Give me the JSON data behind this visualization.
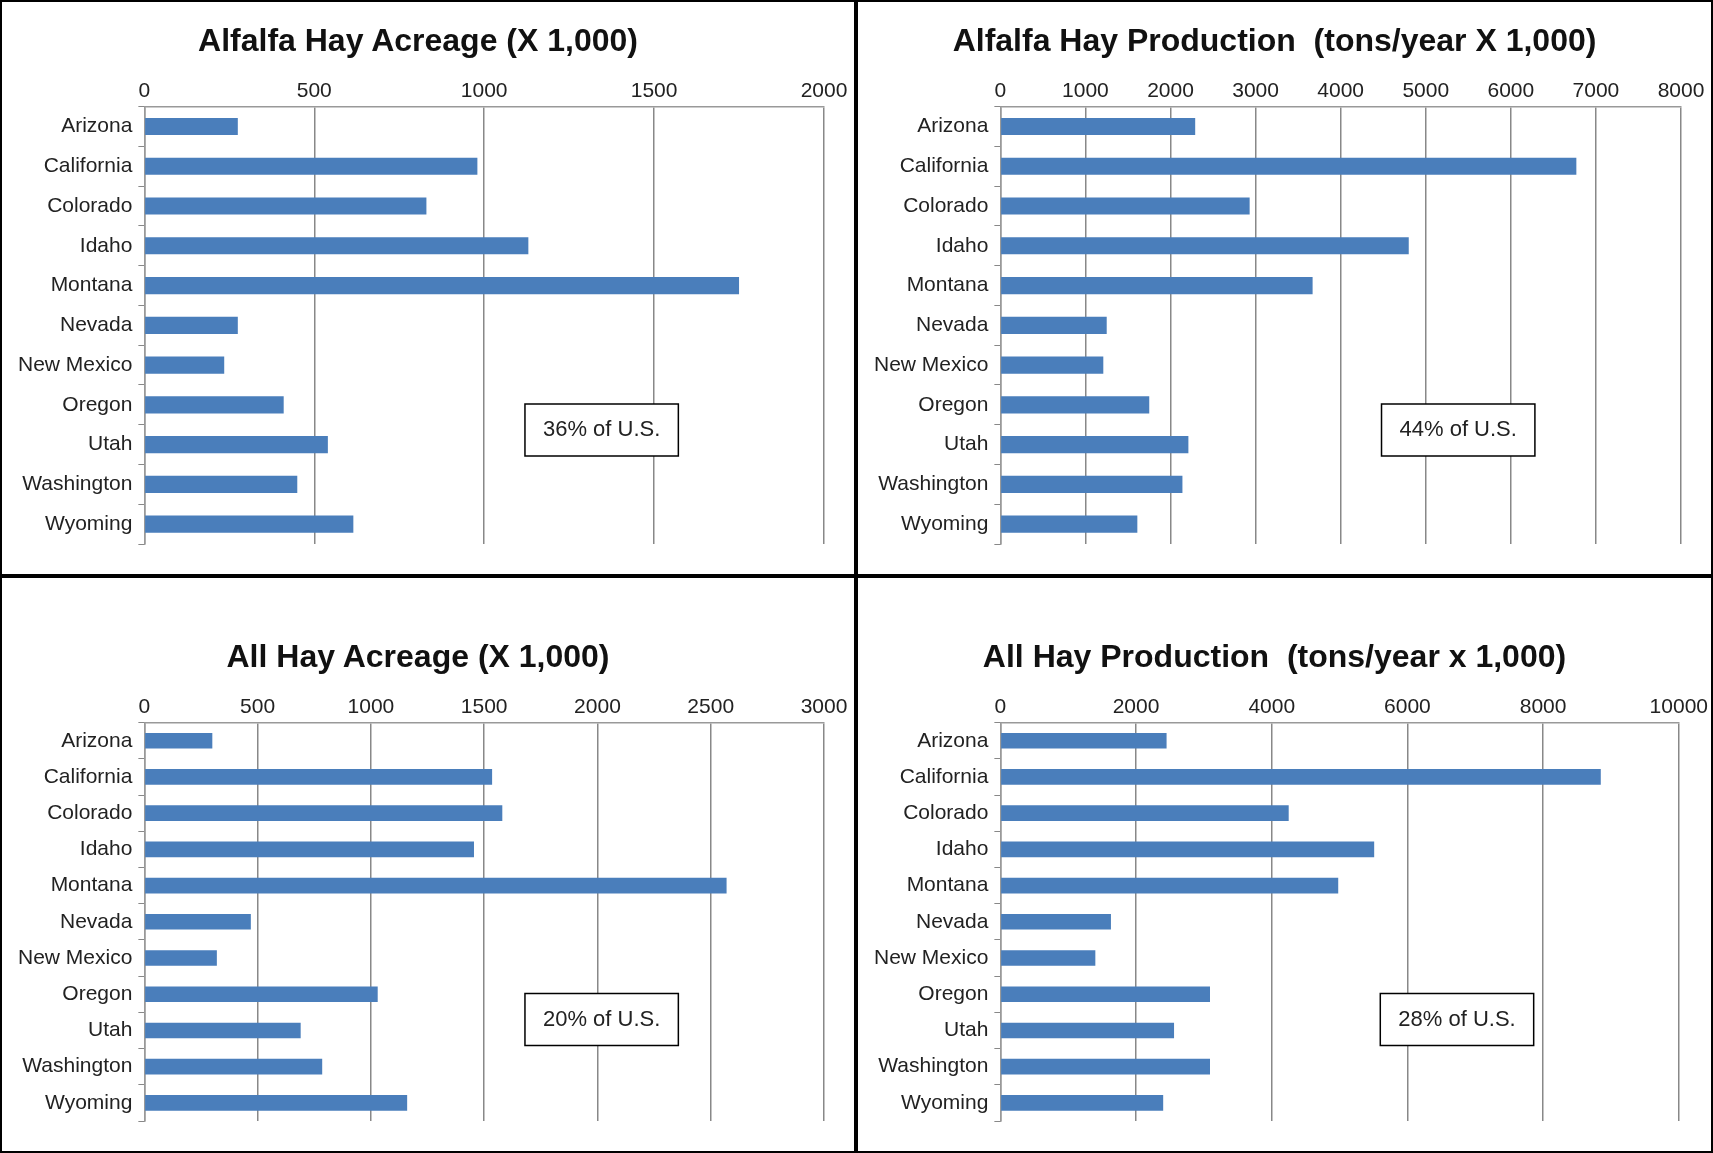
{
  "chart_data": [
    {
      "type": "bar",
      "orientation": "horizontal",
      "title": "Alfalfa Hay Acreage (X 1,000)",
      "categories": [
        "Arizona",
        "California",
        "Colorado",
        "Idaho",
        "Montana",
        "Nevada",
        "New Mexico",
        "Oregon",
        "Utah",
        "Washington",
        "Wyoming"
      ],
      "values": [
        275,
        980,
        830,
        1130,
        1750,
        275,
        235,
        410,
        540,
        450,
        615
      ],
      "color": "#4a7ebb",
      "xlim": [
        0,
        2000
      ],
      "xticks": [
        0,
        500,
        1000,
        1500,
        2000
      ],
      "grid": "x",
      "legend": false,
      "annotations": [
        "36% of U.S."
      ]
    },
    {
      "type": "bar",
      "orientation": "horizontal",
      "title": "Alfalfa Hay Production  (tons/year X 1,000)",
      "categories": [
        "Arizona",
        "California",
        "Colorado",
        "Idaho",
        "Montana",
        "Nevada",
        "New Mexico",
        "Oregon",
        "Utah",
        "Washington",
        "Wyoming"
      ],
      "values": [
        2290,
        6770,
        2930,
        4800,
        3670,
        1250,
        1210,
        1750,
        2210,
        2140,
        1610
      ],
      "color": "#4a7ebb",
      "xlim": [
        0,
        8000
      ],
      "xticks": [
        0,
        1000,
        2000,
        3000,
        4000,
        5000,
        6000,
        7000,
        8000
      ],
      "grid": "x",
      "legend": false,
      "annotations": [
        "44% of U.S."
      ]
    },
    {
      "type": "bar",
      "orientation": "horizontal",
      "title": "All Hay Acreage (X 1,000)",
      "categories": [
        "Arizona",
        "California",
        "Colorado",
        "Idaho",
        "Montana",
        "Nevada",
        "New Mexico",
        "Oregon",
        "Utah",
        "Washington",
        "Wyoming"
      ],
      "values": [
        300,
        1535,
        1580,
        1455,
        2570,
        470,
        320,
        1030,
        690,
        785,
        1160
      ],
      "color": "#4a7ebb",
      "xlim": [
        0,
        3000
      ],
      "xticks": [
        0,
        500,
        1000,
        1500,
        2000,
        2500,
        3000
      ],
      "grid": "x",
      "legend": false,
      "annotations": [
        "20% of U.S."
      ]
    },
    {
      "type": "bar",
      "orientation": "horizontal",
      "title": "All Hay Production  (tons/year x 1,000)",
      "categories": [
        "Arizona",
        "California",
        "Colorado",
        "Idaho",
        "Montana",
        "Nevada",
        "New Mexico",
        "Oregon",
        "Utah",
        "Washington",
        "Wyoming"
      ],
      "values": [
        2450,
        8850,
        4250,
        5510,
        4980,
        1630,
        1400,
        3090,
        2560,
        3090,
        2400
      ],
      "color": "#4a7ebb",
      "xlim": [
        0,
        10000
      ],
      "xticks": [
        0,
        2000,
        4000,
        6000,
        8000,
        10000
      ],
      "grid": "x",
      "legend": false,
      "annotations": [
        "28% of U.S."
      ]
    }
  ]
}
